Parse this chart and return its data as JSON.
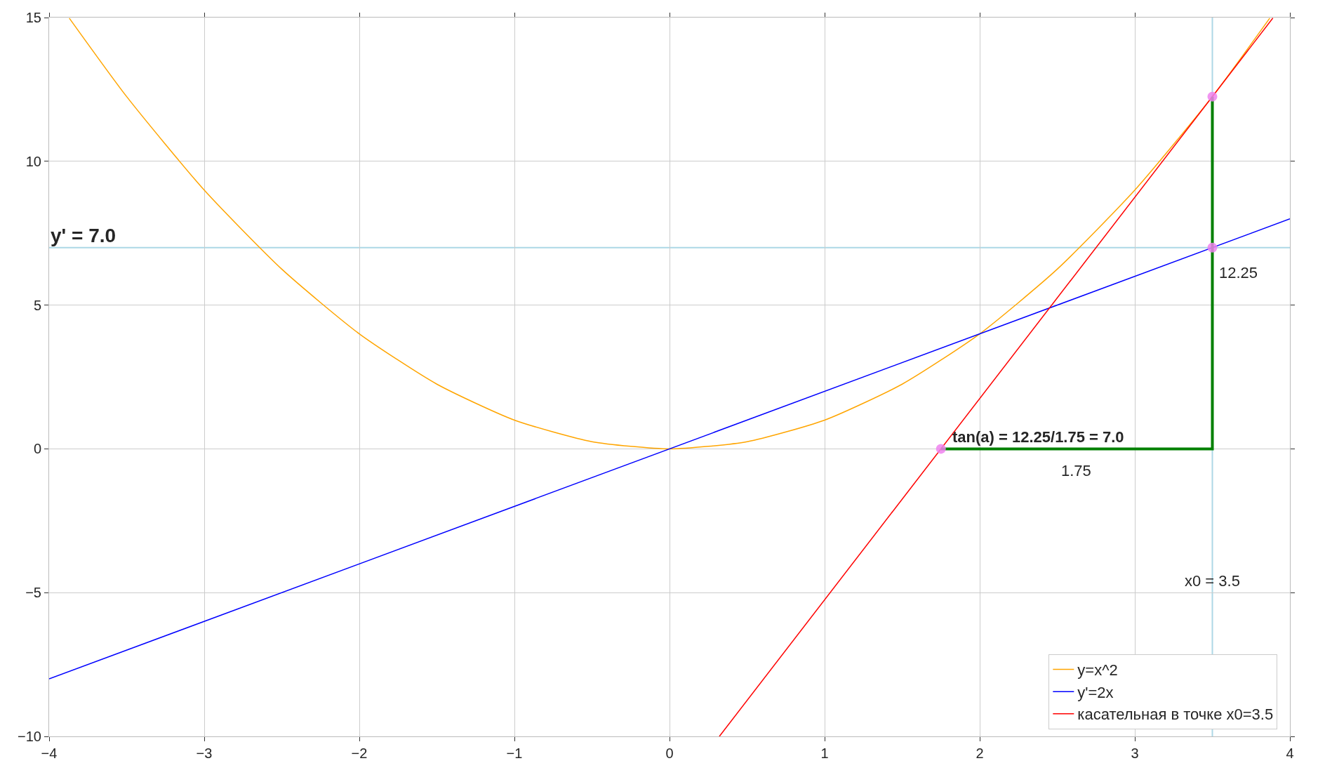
{
  "chart_data": {
    "type": "line",
    "xlim": [
      -4,
      4
    ],
    "ylim": [
      -10,
      15
    ],
    "xticks": [
      {
        "value": -4,
        "label": "−4"
      },
      {
        "value": -3,
        "label": "−3"
      },
      {
        "value": -2,
        "label": "−2"
      },
      {
        "value": -1,
        "label": "−1"
      },
      0,
      1,
      2,
      3,
      4
    ],
    "yticks": [
      {
        "value": -10,
        "label": "−10"
      },
      {
        "value": -5,
        "label": "−5"
      },
      0,
      5,
      10,
      15
    ],
    "grid": true,
    "legend": "bottom right",
    "marker": "none",
    "line_style": "solid",
    "series": [
      {
        "name": "y=x^2",
        "color": "#ffa500",
        "x": [
          -3.87,
          -3.5,
          -3,
          -2.5,
          -2,
          -1.5,
          -1,
          -0.5,
          0,
          0.5,
          1,
          1.5,
          2,
          2.5,
          3,
          3.5,
          3.87
        ],
        "values": [
          14.98,
          12.25,
          9,
          6.25,
          4,
          2.25,
          1,
          0.25,
          0,
          0.25,
          1,
          2.25,
          4,
          6.25,
          9,
          12.25,
          14.98
        ]
      },
      {
        "name": "y'=2x",
        "color": "#0000ff",
        "x": [
          -4,
          4
        ],
        "values": [
          -8,
          8
        ]
      },
      {
        "name": "касательная в точке x0=3.5",
        "color": "#ff0000",
        "x": [
          0.3214,
          3.89
        ],
        "values": [
          -10,
          14.98
        ]
      },
      {
        "color": "#008000",
        "x": [
          1.75,
          3.5,
          3.5
        ],
        "values": [
          0,
          0,
          12.25
        ]
      },
      {
        "type": "scatter",
        "marker": "circle",
        "color": "#ee82ee",
        "x": [
          1.75,
          3.5,
          3.5
        ],
        "values": [
          0,
          12.25,
          7
        ]
      }
    ],
    "ref_lines": [
      {
        "axis": "y",
        "value": 7,
        "color": "#add8e6",
        "label": "y' = 7.0"
      },
      {
        "axis": "x",
        "value": 3.5,
        "color": "#add8e6",
        "label": "x0 = 3.5"
      }
    ],
    "annotations": [
      "12.25",
      "1.75",
      "tan(a) = 12.25/1.75 = 7.0"
    ]
  }
}
